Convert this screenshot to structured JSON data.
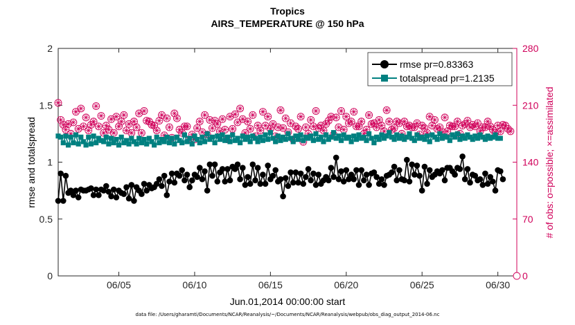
{
  "chart_data": {
    "type": "line",
    "title": "Tropics",
    "subtitle": "AIRS_TEMPERATURE @ 150 hPa",
    "xlabel": "Jun.01,2014 00:00:00 start",
    "ylabel_left": "rmse and totalspread",
    "ylabel_right": "# of obs: o=possible; ×=assimilated",
    "ylim_left": [
      0,
      2
    ],
    "ylim_right": [
      0,
      280
    ],
    "yticks_left": [
      "0",
      "0.5",
      "1",
      "1.5",
      "2"
    ],
    "yticks_right": [
      "0",
      "70",
      "140",
      "210",
      "280"
    ],
    "xlim_days": [
      1,
      31.25
    ],
    "xticks": [
      {
        "day": 5,
        "label": "06/05"
      },
      {
        "day": 10,
        "label": "06/10"
      },
      {
        "day": 15,
        "label": "06/15"
      },
      {
        "day": 20,
        "label": "06/20"
      },
      {
        "day": 25,
        "label": "06/25"
      },
      {
        "day": 30,
        "label": "06/30"
      }
    ],
    "colors": {
      "rmse": "#000000",
      "totalspread": "#008080",
      "obs": "#d0005a"
    },
    "legend": {
      "position": "top-right",
      "entries": [
        "rmse pr=0.83363",
        "totalspread pr=1.2135"
      ]
    },
    "series": [
      {
        "name": "rmse pr=0.83363",
        "axis": "left",
        "values": [
          0.66,
          0.9,
          0.66,
          0.88,
          0.73,
          0.75,
          0.71,
          0.75,
          0.69,
          0.76,
          0.75,
          0.75,
          0.76,
          0.77,
          0.71,
          0.76,
          0.71,
          0.76,
          0.75,
          0.79,
          0.74,
          0.7,
          0.76,
          0.69,
          0.75,
          0.73,
          0.72,
          0.78,
          0.68,
          0.8,
          0.66,
          0.78,
          0.75,
          0.72,
          0.81,
          0.75,
          0.8,
          0.77,
          0.78,
          0.81,
          0.85,
          0.79,
          0.88,
          0.71,
          0.83,
          0.9,
          0.82,
          0.9,
          0.88,
          0.93,
          0.84,
          0.89,
          0.78,
          0.84,
          0.89,
          0.87,
          0.95,
          0.85,
          0.92,
          0.75,
          0.98,
          0.88,
          0.98,
          0.83,
          0.91,
          0.94,
          0.83,
          0.94,
          0.84,
          0.96,
          0.94,
          0.98,
          0.85,
          0.95,
          0.8,
          0.87,
          0.81,
          0.98,
          0.84,
          0.95,
          0.81,
          0.89,
          0.81,
          0.97,
          0.85,
          0.88,
          0.93,
          0.83,
          0.85,
          0.7,
          0.86,
          0.79,
          0.91,
          0.82,
          0.91,
          0.82,
          0.9,
          0.81,
          0.87,
          0.94,
          0.84,
          0.9,
          0.8,
          0.89,
          0.81,
          0.84,
          0.87,
          0.84,
          0.95,
          0.87,
          1.04,
          0.85,
          0.92,
          0.83,
          0.93,
          0.85,
          0.89,
          0.85,
          0.93,
          0.8,
          0.93,
          0.84,
          0.89,
          0.8,
          0.9,
          0.91,
          0.87,
          0.81,
          0.85,
          0.8,
          0.88,
          0.89,
          0.91,
          0.96,
          0.84,
          0.93,
          0.85,
          0.84,
          1.02,
          0.83,
          0.98,
          0.89,
          0.97,
          0.88,
          0.75,
          0.96,
          0.81,
          0.93,
          0.87,
          0.89,
          0.92,
          0.9,
          0.93,
          0.84,
          0.95,
          0.95,
          0.92,
          0.89,
          0.95,
          0.94,
          1.05,
          0.85,
          0.94,
          0.82,
          0.89,
          0.88,
          0.84,
          0.85,
          0.8,
          0.9,
          0.81,
          0.87,
          0.83,
          0.75,
          0.93,
          0.92,
          0.85
        ]
      },
      {
        "name": "totalspread pr=1.2135",
        "axis": "left",
        "values": [
          1.23,
          1.22,
          1.17,
          1.23,
          1.15,
          1.22,
          1.17,
          1.24,
          1.16,
          1.22,
          1.18,
          1.15,
          1.22,
          1.16,
          1.23,
          1.17,
          1.21,
          1.19,
          1.18,
          1.22,
          1.16,
          1.21,
          1.17,
          1.2,
          1.15,
          1.22,
          1.17,
          1.19,
          1.16,
          1.21,
          1.18,
          1.16,
          1.21,
          1.17,
          1.2,
          1.16,
          1.21,
          1.18,
          1.15,
          1.22,
          1.17,
          1.2,
          1.18,
          1.22,
          1.17,
          1.21,
          1.16,
          1.22,
          1.19,
          1.17,
          1.24,
          1.18,
          1.21,
          1.16,
          1.23,
          1.2,
          1.17,
          1.22,
          1.18,
          1.25,
          1.2,
          1.22,
          1.17,
          1.23,
          1.2,
          1.24,
          1.19,
          1.22,
          1.18,
          1.24,
          1.19,
          1.21,
          1.17,
          1.23,
          1.2,
          1.22,
          1.18,
          1.23,
          1.21,
          1.18,
          1.22,
          1.19,
          1.24,
          1.2,
          1.26,
          1.21,
          1.18,
          1.23,
          1.19,
          1.22,
          1.2,
          1.25,
          1.21,
          1.18,
          1.23,
          1.2,
          1.24,
          1.19,
          1.22,
          1.21,
          1.23,
          1.19,
          1.25,
          1.2,
          1.22,
          1.18,
          1.24,
          1.2,
          1.22,
          1.26,
          1.21,
          1.23,
          1.19,
          1.24,
          1.21,
          1.22,
          1.18,
          1.23,
          1.2,
          1.24,
          1.21,
          1.22,
          1.19,
          1.25,
          1.21,
          1.17,
          1.22,
          1.2,
          1.24,
          1.21,
          1.23,
          1.26,
          1.22,
          1.2,
          1.24,
          1.21,
          1.23,
          1.2,
          1.22,
          1.25,
          1.21,
          1.19,
          1.24,
          1.21,
          1.22,
          1.2,
          1.23,
          1.18,
          1.24,
          1.22,
          1.2,
          1.25,
          1.21,
          1.23,
          1.22,
          1.19,
          1.24,
          1.22,
          1.25,
          1.2,
          1.23,
          1.21,
          1.24,
          1.22,
          1.2,
          1.23,
          1.21,
          1.24,
          1.22,
          1.2,
          1.23,
          1.21,
          1.22,
          1.24,
          1.21,
          1.21
        ]
      },
      {
        "name": "# obs possible",
        "axis": "right",
        "values": [
          213,
          192,
          186,
          180,
          187,
          175,
          189,
          202,
          181,
          206,
          184,
          195,
          179,
          186,
          190,
          209,
          184,
          197,
          176,
          185,
          180,
          193,
          176,
          196,
          184,
          190,
          198,
          179,
          187,
          176,
          190,
          183,
          200,
          176,
          203,
          191,
          190,
          186,
          185,
          179,
          191,
          198,
          173,
          194,
          183,
          170,
          200,
          194,
          180,
          176,
          184,
          184,
          168,
          174,
          168,
          182,
          190,
          177,
          198,
          174,
          192,
          182,
          191,
          187,
          178,
          193,
          180,
          168,
          196,
          181,
          199,
          189,
          206,
          193,
          176,
          190,
          181,
          198,
          172,
          185,
          179,
          202,
          185,
          196,
          181,
          187,
          172,
          183,
          204,
          182,
          194,
          177,
          188,
          168,
          184,
          181,
          196,
          165,
          183,
          175,
          192,
          184,
          203,
          182,
          185,
          179,
          187,
          191,
          196,
          174,
          195,
          183,
          203,
          180,
          196,
          188,
          190,
          202,
          184,
          184,
          190,
          175,
          180,
          198,
          187,
          188,
          183,
          192,
          185,
          178,
          204,
          190,
          180,
          182,
          190,
          188,
          175,
          190,
          184,
          185,
          183,
          183,
          188,
          174,
          185,
          182,
          176,
          196,
          185,
          192,
          181,
          183,
          177,
          195,
          178,
          185,
          184,
          184,
          190,
          175,
          185,
          187,
          191,
          183,
          186,
          184,
          188,
          178,
          183,
          183,
          190,
          184,
          180,
          176,
          185,
          178,
          186,
          185,
          181,
          178
        ]
      }
    ],
    "footnote": "data file: /Users/gharamti/Documents/NCAR/Reanalysis/~/Documents/NCAR/Reanalysis/webpub/obs_diag_output_2014-06.nc"
  }
}
